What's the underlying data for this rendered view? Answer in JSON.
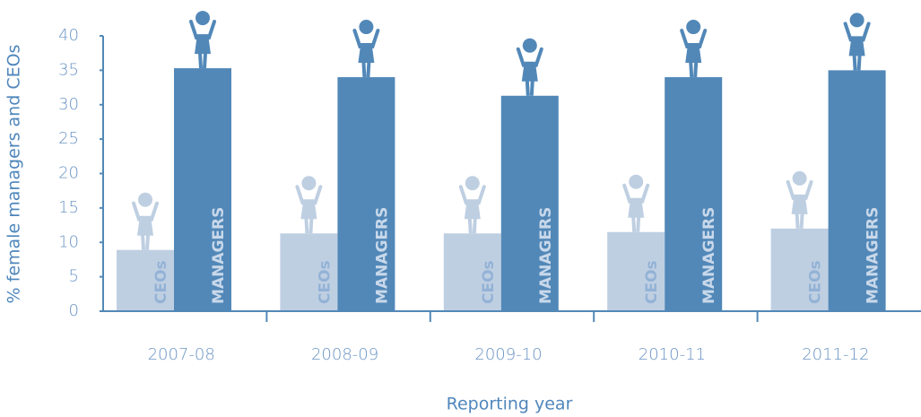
{
  "chart_data": {
    "type": "bar",
    "categories": [
      "2007-08",
      "2008-09",
      "2009-10",
      "2010-11",
      "2011-12"
    ],
    "series": [
      {
        "name": "CEOs",
        "color": "#bfcfe2",
        "values": [
          8.9,
          11.3,
          11.3,
          11.5,
          12.0
        ]
      },
      {
        "name": "MANAGERS",
        "color": "#5288b8",
        "values": [
          35.3,
          34.0,
          31.3,
          34.0,
          35.0
        ]
      }
    ],
    "ylim": [
      0,
      40
    ],
    "yticks": [
      0,
      5,
      10,
      15,
      20,
      25,
      30,
      35,
      40
    ],
    "y_label": "% female managers and CEOs",
    "x_label": "Reporting year",
    "grid": false
  }
}
